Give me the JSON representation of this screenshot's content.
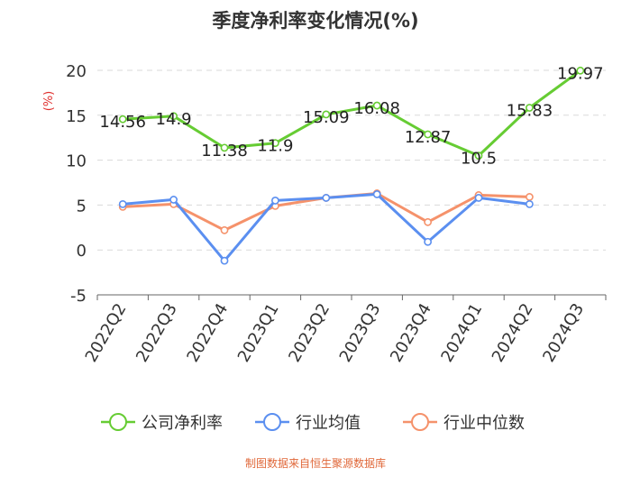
{
  "chart_data": {
    "type": "line",
    "title": "季度净利率变化情况(%)",
    "ylabel": "(%)",
    "xlabel": "",
    "categories": [
      "2022Q2",
      "2022Q3",
      "2022Q4",
      "2023Q1",
      "2023Q2",
      "2023Q3",
      "2023Q4",
      "2024Q1",
      "2024Q2",
      "2024Q3"
    ],
    "ylim": [
      -5,
      20
    ],
    "yticks": [
      -5,
      0,
      5,
      10,
      15,
      20
    ],
    "grid": true,
    "legend_position": "bottom",
    "series": [
      {
        "name": "公司净利率",
        "color": "#66cc33",
        "values": [
          14.56,
          14.9,
          11.38,
          11.9,
          15.09,
          16.08,
          12.87,
          10.5,
          15.83,
          19.97
        ],
        "labels": [
          "14.56",
          "14.9",
          "11.38",
          "11.9",
          "15.09",
          "16.08",
          "12.87",
          "10.5",
          "15.83",
          "19.97"
        ]
      },
      {
        "name": "行业均值",
        "color": "#5b8ff0",
        "values": [
          5.1,
          5.6,
          -1.2,
          5.5,
          5.8,
          6.2,
          0.9,
          5.8,
          5.1,
          null
        ]
      },
      {
        "name": "行业中位数",
        "color": "#f5926b",
        "values": [
          4.8,
          5.1,
          2.2,
          4.9,
          5.8,
          6.3,
          3.1,
          6.1,
          5.9,
          null
        ]
      }
    ],
    "footer": "制图数据来自恒生聚源数据库",
    "footer_color": "#e0683a",
    "ylabel_color": "#e0302e"
  }
}
